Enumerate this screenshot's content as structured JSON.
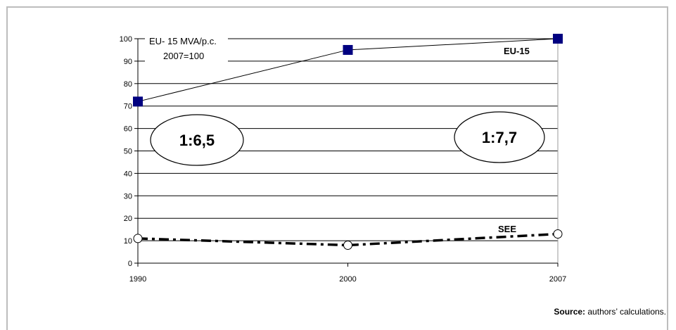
{
  "chart_data": {
    "type": "line",
    "x": [
      "1990",
      "2000",
      "2007"
    ],
    "ylim": [
      0,
      100
    ],
    "yticks": [
      0,
      10,
      20,
      30,
      40,
      50,
      60,
      70,
      80,
      90,
      100
    ],
    "grid": true,
    "title_lines": [
      "EU- 15 MVA/p.c.",
      "2007=100"
    ],
    "series": [
      {
        "name": "EU-15",
        "values": [
          72,
          95,
          100
        ],
        "color": "#000080",
        "marker": "square",
        "line": "solid"
      },
      {
        "name": "SEE",
        "values": [
          11,
          8,
          13
        ],
        "color": "#000000",
        "marker": "circle-open",
        "line": "dash-dot"
      }
    ],
    "annotations": [
      "1:6,5",
      "1:7,7"
    ]
  },
  "source": {
    "label": "Source:",
    "text": " authors’ calculations."
  }
}
